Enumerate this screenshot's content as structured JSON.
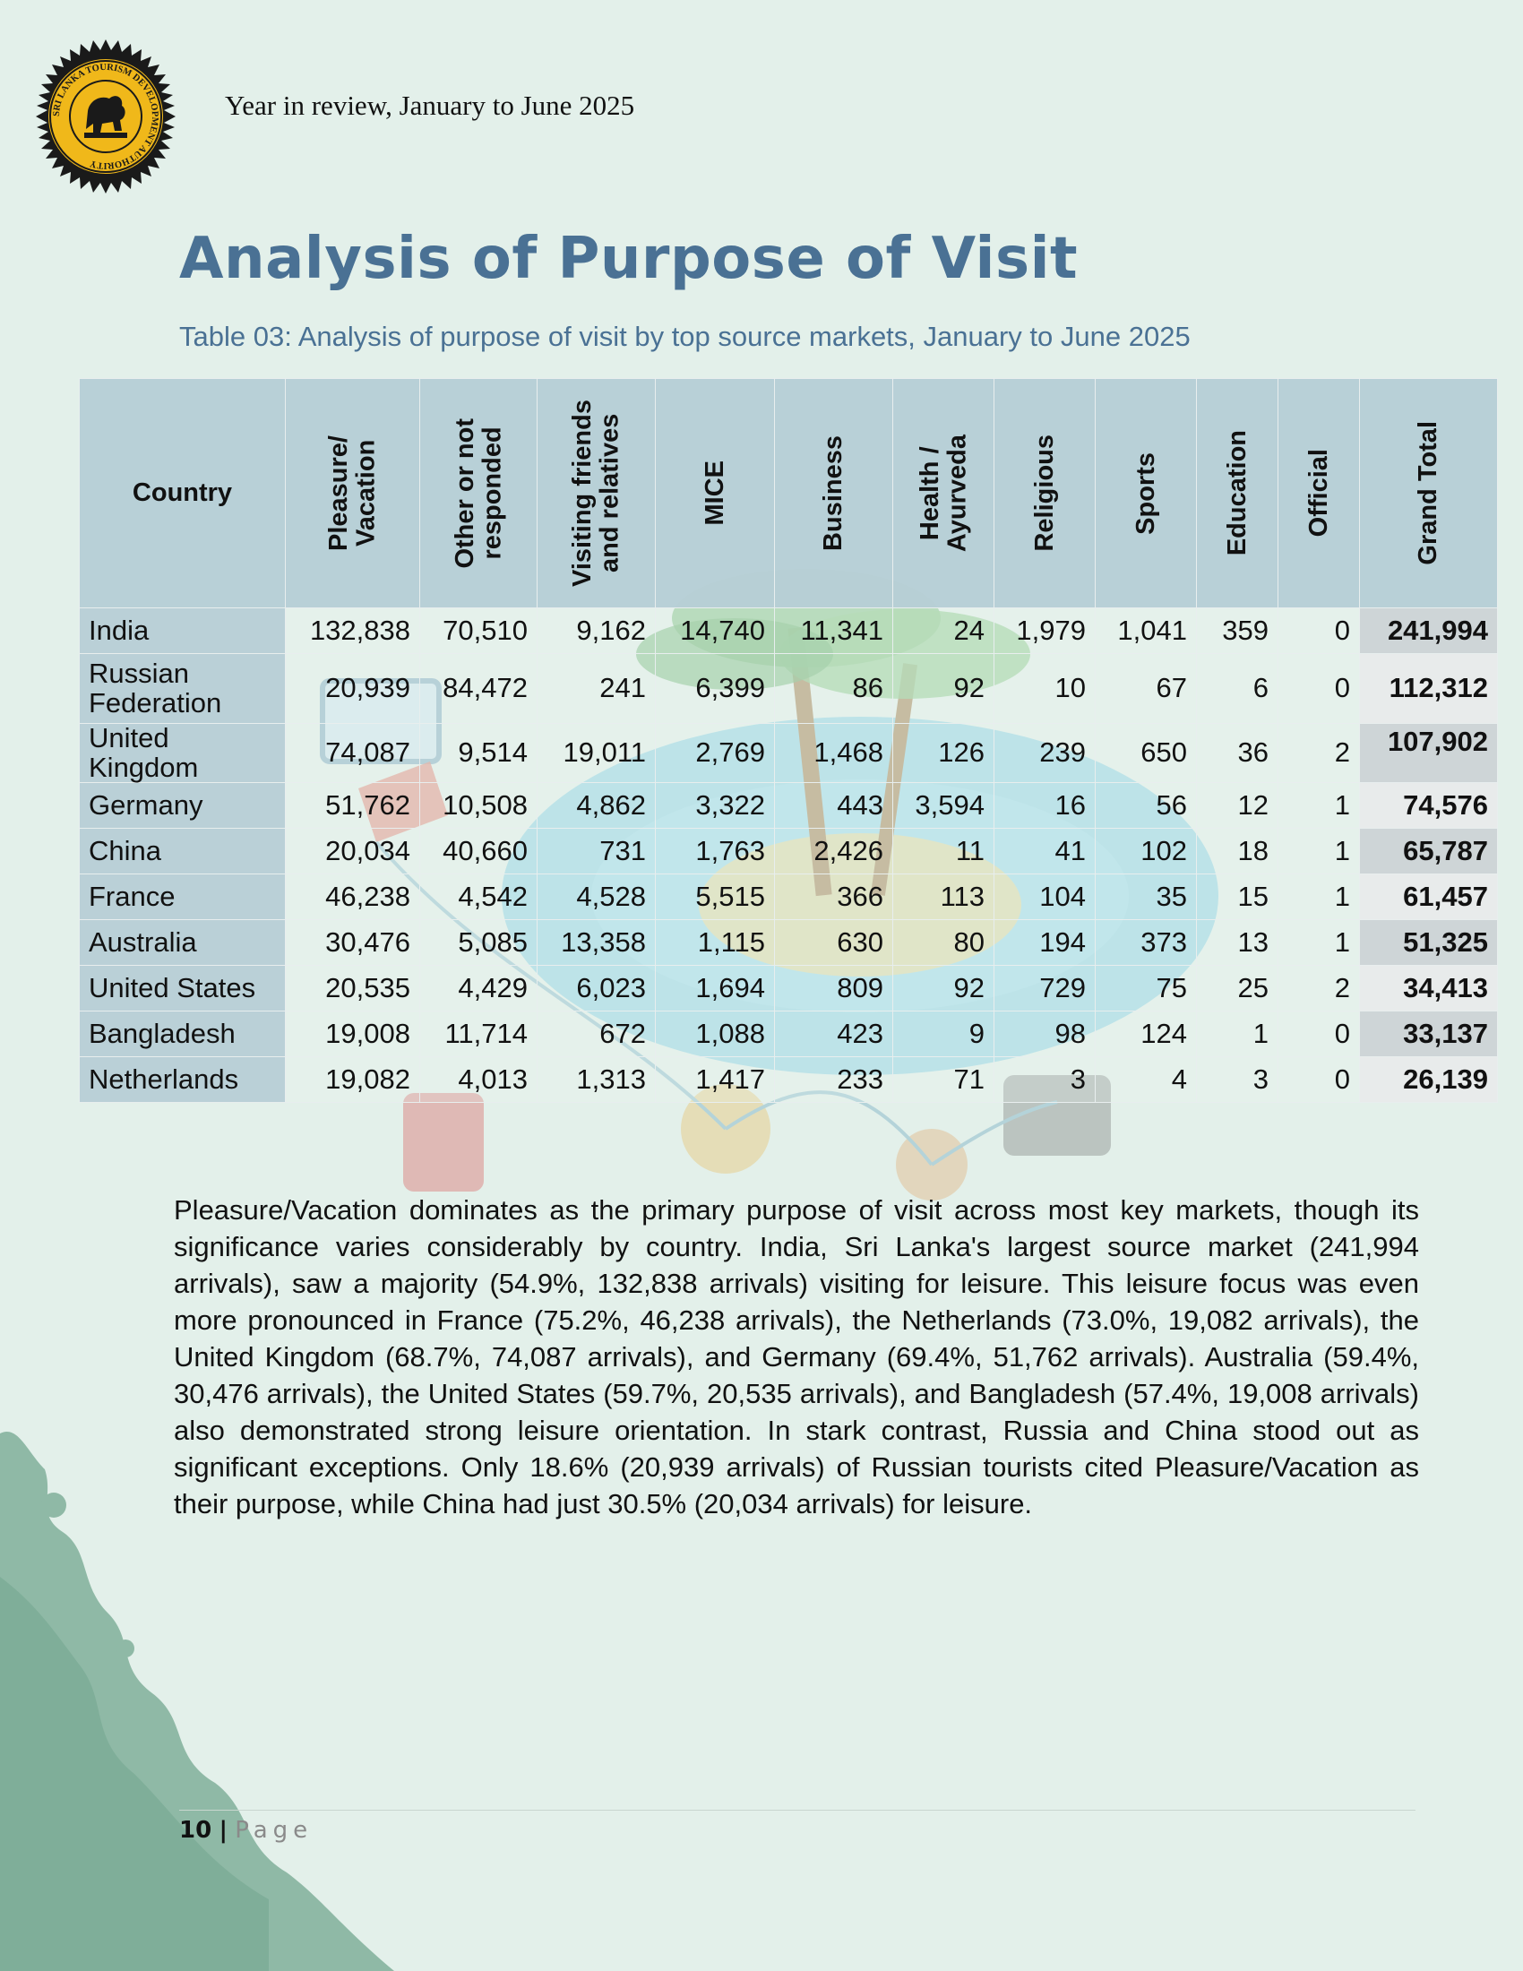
{
  "header": {
    "subtitle": "Year in review, January to June 2025"
  },
  "logo": {
    "text": "SRI LANKA TOURISM DEVELOPMENT AUTHORITY",
    "icon": "lion-emblem-icon"
  },
  "page_title": "Analysis of Purpose of Visit",
  "table": {
    "caption": "Table 03: Analysis of purpose of visit by top source markets, January to June 2025",
    "columns": [
      "Country",
      "Pleasure/\nVacation",
      "Other or not\nresponded",
      "Visiting friends\nand relatives",
      "MICE",
      "Business",
      "Health /\nAyurveda",
      "Religious",
      "Sports",
      "Education",
      "Official",
      "Grand Total"
    ],
    "rows": [
      {
        "country": "India",
        "values": [
          "132,838",
          "70,510",
          "9,162",
          "14,740",
          "11,341",
          "24",
          "1,979",
          "1,041",
          "359",
          "0"
        ],
        "total": "241,994"
      },
      {
        "country": "Russian Federation",
        "values": [
          "20,939",
          "84,472",
          "241",
          "6,399",
          "86",
          "92",
          "10",
          "67",
          "6",
          "0"
        ],
        "total": "112,312"
      },
      {
        "country": "United Kingdom",
        "values": [
          "74,087",
          "9,514",
          "19,011",
          "2,769",
          "1,468",
          "126",
          "239",
          "650",
          "36",
          "2"
        ],
        "total": "107,902"
      },
      {
        "country": "Germany",
        "values": [
          "51,762",
          "10,508",
          "4,862",
          "3,322",
          "443",
          "3,594",
          "16",
          "56",
          "12",
          "1"
        ],
        "total": "74,576"
      },
      {
        "country": "China",
        "values": [
          "20,034",
          "40,660",
          "731",
          "1,763",
          "2,426",
          "11",
          "41",
          "102",
          "18",
          "1"
        ],
        "total": "65,787"
      },
      {
        "country": "France",
        "values": [
          "46,238",
          "4,542",
          "4,528",
          "5,515",
          "366",
          "113",
          "104",
          "35",
          "15",
          "1"
        ],
        "total": "61,457"
      },
      {
        "country": "Australia",
        "values": [
          "30,476",
          "5,085",
          "13,358",
          "1,115",
          "630",
          "80",
          "194",
          "373",
          "13",
          "1"
        ],
        "total": "51,325"
      },
      {
        "country": "United States",
        "values": [
          "20,535",
          "4,429",
          "6,023",
          "1,694",
          "809",
          "92",
          "729",
          "75",
          "25",
          "2"
        ],
        "total": "34,413"
      },
      {
        "country": "Bangladesh",
        "values": [
          "19,008",
          "11,714",
          "672",
          "1,088",
          "423",
          "9",
          "98",
          "124",
          "1",
          "0"
        ],
        "total": "33,137"
      },
      {
        "country": "Netherlands",
        "values": [
          "19,082",
          "4,013",
          "1,313",
          "1,417",
          "233",
          "71",
          "3",
          "4",
          "3",
          "0"
        ],
        "total": "26,139"
      }
    ]
  },
  "body_text": "Pleasure/Vacation dominates as the primary purpose of visit across most key markets, though its significance varies considerably by country. India, Sri Lanka's largest source market (241,994 arrivals), saw a majority (54.9%, 132,838 arrivals) visiting for leisure. This leisure focus was even more pronounced in France (75.2%, 46,238 arrivals), the Netherlands (73.0%, 19,082 arrivals), the United Kingdom (68.7%, 74,087 arrivals), and Germany (69.4%, 51,762 arrivals). Australia (59.4%, 30,476 arrivals), the United States (59.7%, 20,535 arrivals), and Bangladesh (57.4%, 19,008 arrivals) also demonstrated strong leisure orientation. In stark contrast, Russia and China stood out as significant exceptions. Only 18.6% (20,939 arrivals) of Russian tourists cited Pleasure/Vacation as their purpose, while China had just 30.5% (20,034 arrivals) for leisure.",
  "footer": {
    "page_number": "10",
    "separator": "|",
    "page_word": "Page"
  },
  "colors": {
    "background": "#e3f0ea",
    "accent": "#4a7194",
    "header_cell": "#b7ced6",
    "splash": "#8fb9a6"
  }
}
